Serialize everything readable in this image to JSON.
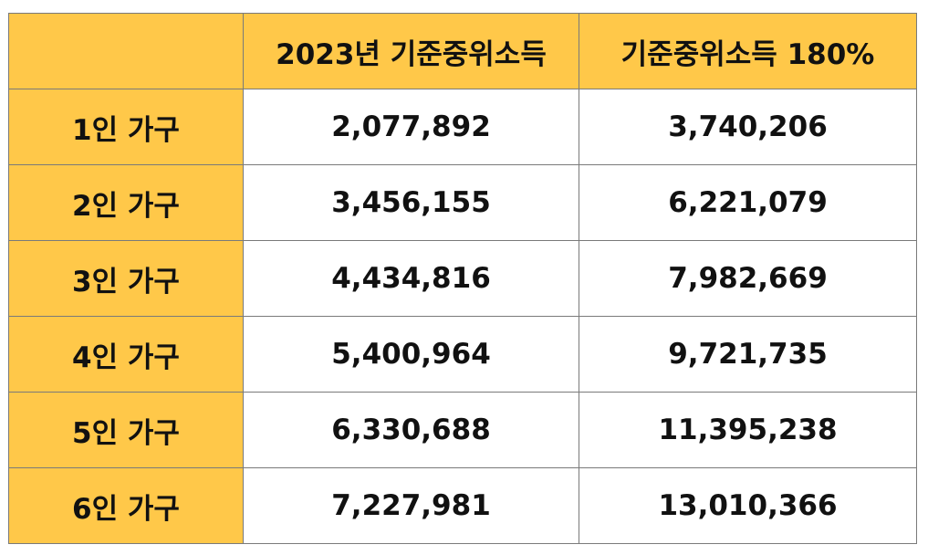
{
  "table": {
    "header": {
      "corner": "",
      "col_median": "2023년 기준중위소득",
      "col_180": "기준중위소득 180%"
    },
    "rows": [
      {
        "label": "1인 가구",
        "median": "2,077,892",
        "pct180": "3,740,206"
      },
      {
        "label": "2인 가구",
        "median": "3,456,155",
        "pct180": "6,221,079"
      },
      {
        "label": "3인 가구",
        "median": "4,434,816",
        "pct180": "7,982,669"
      },
      {
        "label": "4인 가구",
        "median": "5,400,964",
        "pct180": "9,721,735"
      },
      {
        "label": "5인 가구",
        "median": "6,330,688",
        "pct180": "11,395,238"
      },
      {
        "label": "6인 가구",
        "median": "7,227,981",
        "pct180": "13,010,366"
      }
    ]
  },
  "colors": {
    "header_background": "#ffc849",
    "border": "#7a7a7a",
    "text": "#111111"
  }
}
